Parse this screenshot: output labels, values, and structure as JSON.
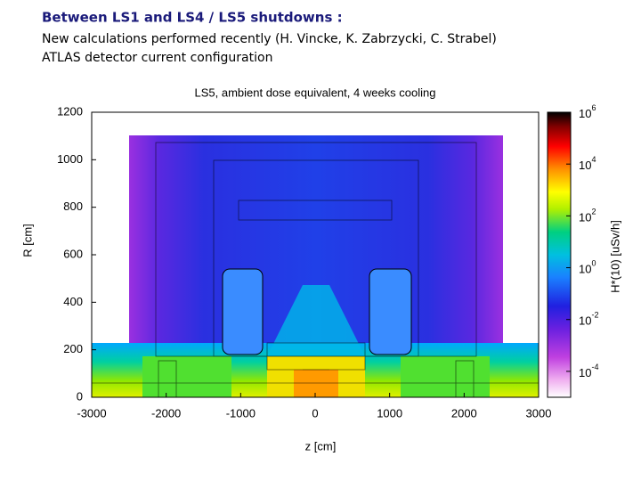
{
  "header": {
    "title": "Between LS1 and LS4 / LS5 shutdowns :",
    "lines": [
      "New calculations performed recently  (H. Vincke, K. Zabrzycki, C. Strabel)",
      "ATLAS detector current configuration"
    ]
  },
  "chart_data": {
    "type": "heatmap",
    "title": "LS5, ambient dose equivalent, 4 weeks cooling",
    "xlabel": "z [cm]",
    "ylabel": "R [cm]",
    "xlim": [
      -3000,
      3000
    ],
    "xticks": [
      -3000,
      -2000,
      -1000,
      0,
      1000,
      2000,
      3000
    ],
    "ylim": [
      0,
      1200
    ],
    "yticks": [
      0,
      200,
      400,
      600,
      800,
      1000,
      1200
    ],
    "colorbar": {
      "label": "H*(10) [uSv/h]",
      "base": "10",
      "log_lim": [
        -5,
        6
      ],
      "exp_ticks": [
        -4,
        -2,
        0,
        2,
        4,
        6
      ]
    }
  }
}
